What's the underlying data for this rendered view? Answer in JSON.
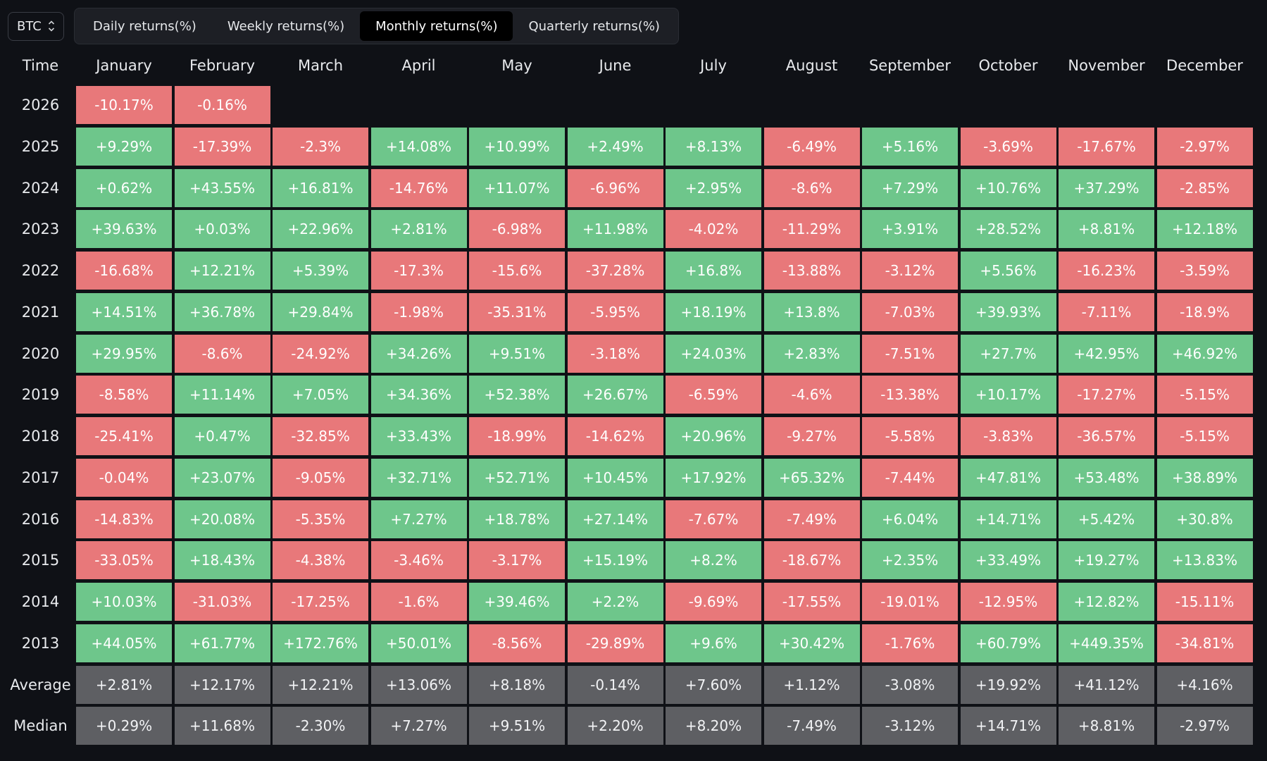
{
  "asset_selector": {
    "value": "BTC",
    "icon": "chevron-updown-icon"
  },
  "tabs": [
    {
      "label": "Daily returns(%)",
      "active": false
    },
    {
      "label": "Weekly returns(%)",
      "active": false
    },
    {
      "label": "Monthly returns(%)",
      "active": true
    },
    {
      "label": "Quarterly returns(%)",
      "active": false
    }
  ],
  "table": {
    "time_header": "Time",
    "months": [
      "January",
      "February",
      "March",
      "April",
      "May",
      "June",
      "July",
      "August",
      "September",
      "October",
      "November",
      "December"
    ],
    "rows": [
      {
        "label": "2026",
        "values": [
          "-10.17%",
          "-0.16%",
          "",
          "",
          "",
          "",
          "",
          "",
          "",
          "",
          "",
          ""
        ]
      },
      {
        "label": "2025",
        "values": [
          "+9.29%",
          "-17.39%",
          "-2.3%",
          "+14.08%",
          "+10.99%",
          "+2.49%",
          "+8.13%",
          "-6.49%",
          "+5.16%",
          "-3.69%",
          "-17.67%",
          "-2.97%"
        ]
      },
      {
        "label": "2024",
        "values": [
          "+0.62%",
          "+43.55%",
          "+16.81%",
          "-14.76%",
          "+11.07%",
          "-6.96%",
          "+2.95%",
          "-8.6%",
          "+7.29%",
          "+10.76%",
          "+37.29%",
          "-2.85%"
        ]
      },
      {
        "label": "2023",
        "values": [
          "+39.63%",
          "+0.03%",
          "+22.96%",
          "+2.81%",
          "-6.98%",
          "+11.98%",
          "-4.02%",
          "-11.29%",
          "+3.91%",
          "+28.52%",
          "+8.81%",
          "+12.18%"
        ]
      },
      {
        "label": "2022",
        "values": [
          "-16.68%",
          "+12.21%",
          "+5.39%",
          "-17.3%",
          "-15.6%",
          "-37.28%",
          "+16.8%",
          "-13.88%",
          "-3.12%",
          "+5.56%",
          "-16.23%",
          "-3.59%"
        ]
      },
      {
        "label": "2021",
        "values": [
          "+14.51%",
          "+36.78%",
          "+29.84%",
          "-1.98%",
          "-35.31%",
          "-5.95%",
          "+18.19%",
          "+13.8%",
          "-7.03%",
          "+39.93%",
          "-7.11%",
          "-18.9%"
        ]
      },
      {
        "label": "2020",
        "values": [
          "+29.95%",
          "-8.6%",
          "-24.92%",
          "+34.26%",
          "+9.51%",
          "-3.18%",
          "+24.03%",
          "+2.83%",
          "-7.51%",
          "+27.7%",
          "+42.95%",
          "+46.92%"
        ]
      },
      {
        "label": "2019",
        "values": [
          "-8.58%",
          "+11.14%",
          "+7.05%",
          "+34.36%",
          "+52.38%",
          "+26.67%",
          "-6.59%",
          "-4.6%",
          "-13.38%",
          "+10.17%",
          "-17.27%",
          "-5.15%"
        ]
      },
      {
        "label": "2018",
        "values": [
          "-25.41%",
          "+0.47%",
          "-32.85%",
          "+33.43%",
          "-18.99%",
          "-14.62%",
          "+20.96%",
          "-9.27%",
          "-5.58%",
          "-3.83%",
          "-36.57%",
          "-5.15%"
        ]
      },
      {
        "label": "2017",
        "values": [
          "-0.04%",
          "+23.07%",
          "-9.05%",
          "+32.71%",
          "+52.71%",
          "+10.45%",
          "+17.92%",
          "+65.32%",
          "-7.44%",
          "+47.81%",
          "+53.48%",
          "+38.89%"
        ]
      },
      {
        "label": "2016",
        "values": [
          "-14.83%",
          "+20.08%",
          "-5.35%",
          "+7.27%",
          "+18.78%",
          "+27.14%",
          "-7.67%",
          "-7.49%",
          "+6.04%",
          "+14.71%",
          "+5.42%",
          "+30.8%"
        ]
      },
      {
        "label": "2015",
        "values": [
          "-33.05%",
          "+18.43%",
          "-4.38%",
          "-3.46%",
          "-3.17%",
          "+15.19%",
          "+8.2%",
          "-18.67%",
          "+2.35%",
          "+33.49%",
          "+19.27%",
          "+13.83%"
        ]
      },
      {
        "label": "2014",
        "values": [
          "+10.03%",
          "-31.03%",
          "-17.25%",
          "-1.6%",
          "+39.46%",
          "+2.2%",
          "-9.69%",
          "-17.55%",
          "-19.01%",
          "-12.95%",
          "+12.82%",
          "-15.11%"
        ]
      },
      {
        "label": "2013",
        "values": [
          "+44.05%",
          "+61.77%",
          "+172.76%",
          "+50.01%",
          "-8.56%",
          "-29.89%",
          "+9.6%",
          "+30.42%",
          "-1.76%",
          "+60.79%",
          "+449.35%",
          "-34.81%"
        ]
      }
    ],
    "summary_rows": [
      {
        "label": "Average",
        "values": [
          "+2.81%",
          "+12.17%",
          "+12.21%",
          "+13.06%",
          "+8.18%",
          "-0.14%",
          "+7.60%",
          "+1.12%",
          "-3.08%",
          "+19.92%",
          "+41.12%",
          "+4.16%"
        ]
      },
      {
        "label": "Median",
        "values": [
          "+0.29%",
          "+11.68%",
          "-2.30%",
          "+7.27%",
          "+9.51%",
          "+2.20%",
          "+8.20%",
          "-7.49%",
          "-3.12%",
          "+14.71%",
          "+8.81%",
          "-2.97%"
        ]
      }
    ]
  },
  "colors": {
    "positive": "#6ec68b",
    "negative": "#e8787a",
    "summary": "#5e5f63",
    "background": "#0f1116"
  }
}
